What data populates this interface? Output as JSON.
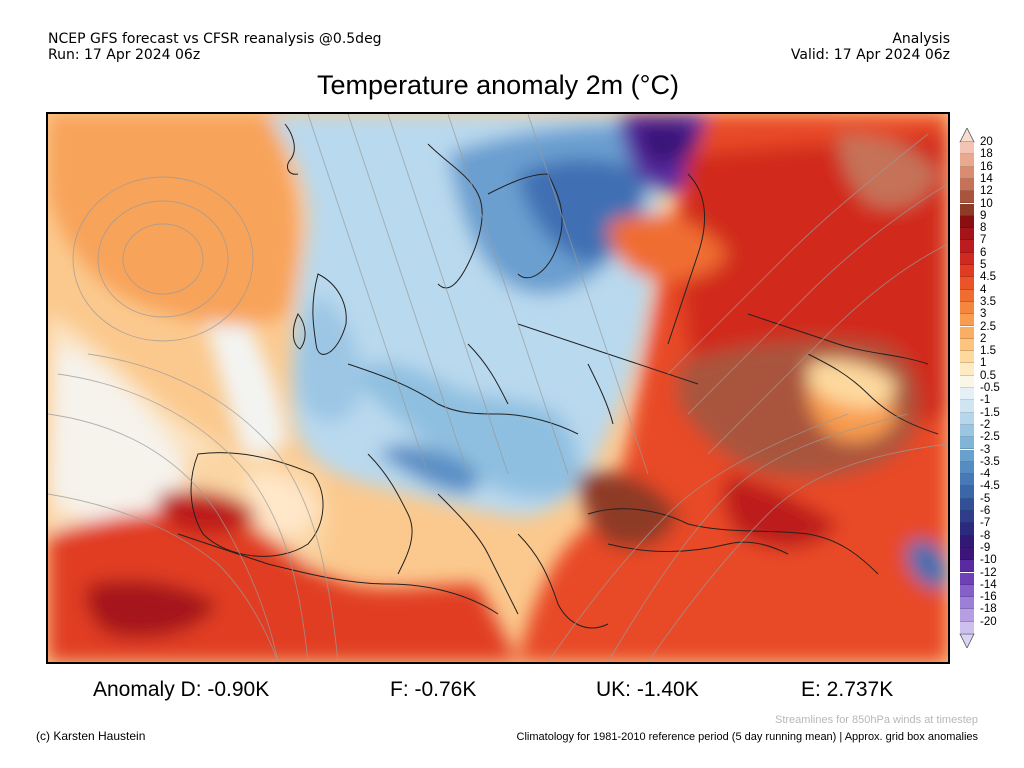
{
  "header": {
    "left_line1": "NCEP GFS forecast vs CFSR reanalysis @0.5deg",
    "left_line2": "Run: 17 Apr 2024 06z",
    "right_line1": "Analysis",
    "right_line2": "Valid: 17 Apr 2024 06z"
  },
  "title": "Temperature anomaly 2m (°C)",
  "colorbar": {
    "labels": [
      "20",
      "18",
      "16",
      "14",
      "12",
      "10",
      "9",
      "8",
      "7",
      "6",
      "5",
      "4.5",
      "4",
      "3.5",
      "3",
      "2.5",
      "2",
      "1.5",
      "1",
      "0.5",
      "-0.5",
      "-1",
      "-1.5",
      "-2",
      "-2.5",
      "-3",
      "-3.5",
      "-4",
      "-4.5",
      "-5",
      "-6",
      "-7",
      "-8",
      "-9",
      "-10",
      "-12",
      "-14",
      "-16",
      "-18",
      "-20"
    ],
    "colors": [
      "#f3c4b4",
      "#e8a98f",
      "#d98c72",
      "#c57258",
      "#a9543c",
      "#8e3b26",
      "#8a0f12",
      "#a5141a",
      "#bd1c1e",
      "#d1291f",
      "#e13c22",
      "#ea5429",
      "#f06d32",
      "#f4863e",
      "#f89c4f",
      "#faae63",
      "#fcc47f",
      "#fdd99e",
      "#fdebc1",
      "#fbf7e8",
      "#e4f0f6",
      "#cfe5f1",
      "#b6d7eb",
      "#9bc6e2",
      "#81b4d9",
      "#68a0ce",
      "#558cc2",
      "#4679b6",
      "#3b67a8",
      "#324f97",
      "#2f3d8a",
      "#2c2a7e",
      "#321a74",
      "#3b1579",
      "#5a2ba0",
      "#6f41b8",
      "#8560c8",
      "#9c7fd6",
      "#b59fe2",
      "#cdbfee"
    ],
    "top_arrow_color": "#f8dccd",
    "bottom_arrow_color": "#ddd3f5"
  },
  "stats": {
    "d": "Anomaly D: -0.90K",
    "f": "F: -0.76K",
    "uk": "UK: -1.40K",
    "e": "E: 2.737K"
  },
  "footer": {
    "credit": "(c) Karsten Haustein",
    "streamlines": "Streamlines for 850hPa winds at timestep",
    "climatology": "Climatology for 1981-2010 reference period (5 day running mean) | Approx. grid box anomalies"
  }
}
